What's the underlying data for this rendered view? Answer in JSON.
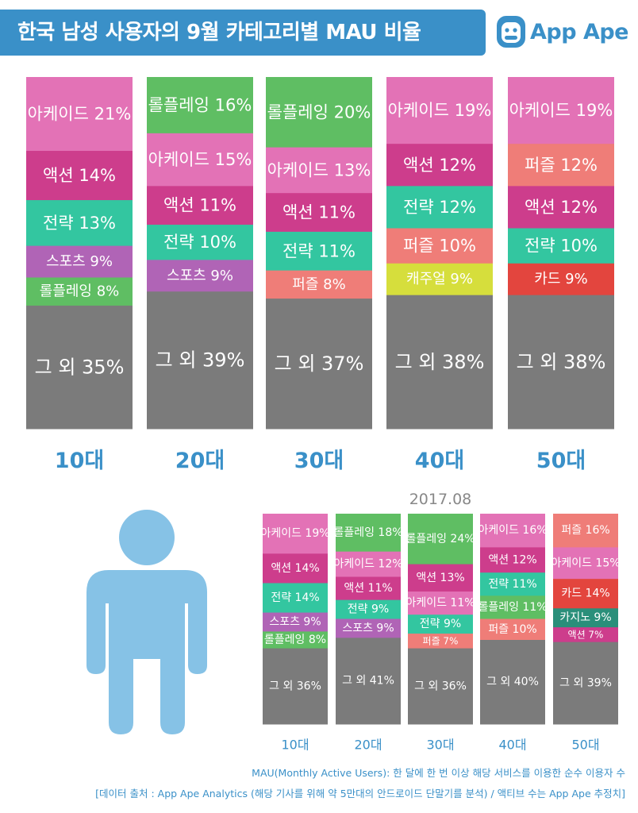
{
  "title": "한국 남성 사용자의 9월 카테고리별 MAU 비율",
  "brand": "App Ape",
  "footnote1": "MAU(Monthly Active Users): 한 달에 한 번 이상 해당 서비스를 이용한 순수 이용자 수",
  "footnote2": "[데이터 출처 : App Ape Analytics (해당 기사를 위해 약 5만대의 안드로이드 단말기를 분석) / 액티브 수는 App Ape 추정치]",
  "colors": {
    "accent": "#3a90c8",
    "아케이드": "#e372b6",
    "롤플레잉": "#5fbe63",
    "액션": "#cd3d8c",
    "전략": "#33c6a0",
    "스포츠": "#b064b6",
    "퍼즐": "#ef7d78",
    "캐주얼": "#d6de3c",
    "카드": "#e3453e",
    "카지노": "#2a8f7a",
    "그 외": "#7b7b7b",
    "person": "#86c2e6"
  },
  "chart_data": [
    {
      "type": "bar",
      "stacked": true,
      "title": "",
      "categories": [
        "10대",
        "20대",
        "30대",
        "40대",
        "50대"
      ],
      "unit": "%",
      "stacks": [
        [
          {
            "label": "아케이드",
            "value": 21
          },
          {
            "label": "액션",
            "value": 14
          },
          {
            "label": "전략",
            "value": 13
          },
          {
            "label": "스포츠",
            "value": 9
          },
          {
            "label": "롤플레잉",
            "value": 8
          },
          {
            "label": "그 외",
            "value": 35
          }
        ],
        [
          {
            "label": "롤플레잉",
            "value": 16
          },
          {
            "label": "아케이드",
            "value": 15
          },
          {
            "label": "액션",
            "value": 11
          },
          {
            "label": "전략",
            "value": 10
          },
          {
            "label": "스포츠",
            "value": 9
          },
          {
            "label": "그 외",
            "value": 39
          }
        ],
        [
          {
            "label": "롤플레잉",
            "value": 20
          },
          {
            "label": "아케이드",
            "value": 13
          },
          {
            "label": "액션",
            "value": 11
          },
          {
            "label": "전략",
            "value": 11
          },
          {
            "label": "퍼즐",
            "value": 8
          },
          {
            "label": "그 외",
            "value": 37
          }
        ],
        [
          {
            "label": "아케이드",
            "value": 19
          },
          {
            "label": "액션",
            "value": 12
          },
          {
            "label": "전략",
            "value": 12
          },
          {
            "label": "퍼즐",
            "value": 10
          },
          {
            "label": "캐주얼",
            "value": 9
          },
          {
            "label": "그 외",
            "value": 38
          }
        ],
        [
          {
            "label": "아케이드",
            "value": 19
          },
          {
            "label": "퍼즐",
            "value": 12
          },
          {
            "label": "액션",
            "value": 12
          },
          {
            "label": "전략",
            "value": 10
          },
          {
            "label": "카드",
            "value": 9
          },
          {
            "label": "그 외",
            "value": 38
          }
        ]
      ]
    },
    {
      "type": "bar",
      "stacked": true,
      "title": "2017.08",
      "categories": [
        "10대",
        "20대",
        "30대",
        "40대",
        "50대"
      ],
      "unit": "%",
      "stacks": [
        [
          {
            "label": "아케이드",
            "value": 19
          },
          {
            "label": "액션",
            "value": 14
          },
          {
            "label": "전략",
            "value": 14
          },
          {
            "label": "스포츠",
            "value": 9
          },
          {
            "label": "롤플레잉",
            "value": 8
          },
          {
            "label": "그 외",
            "value": 36
          }
        ],
        [
          {
            "label": "롤플레잉",
            "value": 18
          },
          {
            "label": "아케이드",
            "value": 12
          },
          {
            "label": "액션",
            "value": 11
          },
          {
            "label": "전략",
            "value": 9
          },
          {
            "label": "스포츠",
            "value": 9
          },
          {
            "label": "그 외",
            "value": 41
          }
        ],
        [
          {
            "label": "롤플레잉",
            "value": 24
          },
          {
            "label": "액션",
            "value": 13
          },
          {
            "label": "아케이드",
            "value": 11
          },
          {
            "label": "전략",
            "value": 9
          },
          {
            "label": "퍼즐",
            "value": 7
          },
          {
            "label": "그 외",
            "value": 36
          }
        ],
        [
          {
            "label": "아케이드",
            "value": 16
          },
          {
            "label": "액션",
            "value": 12
          },
          {
            "label": "전략",
            "value": 11
          },
          {
            "label": "롤플레잉",
            "value": 11
          },
          {
            "label": "퍼즐",
            "value": 10
          },
          {
            "label": "그 외",
            "value": 40
          }
        ],
        [
          {
            "label": "퍼즐",
            "value": 16
          },
          {
            "label": "아케이드",
            "value": 15
          },
          {
            "label": "카드",
            "value": 14
          },
          {
            "label": "카지노",
            "value": 9
          },
          {
            "label": "액션",
            "value": 7
          },
          {
            "label": "그 외",
            "value": 39
          }
        ]
      ]
    }
  ]
}
